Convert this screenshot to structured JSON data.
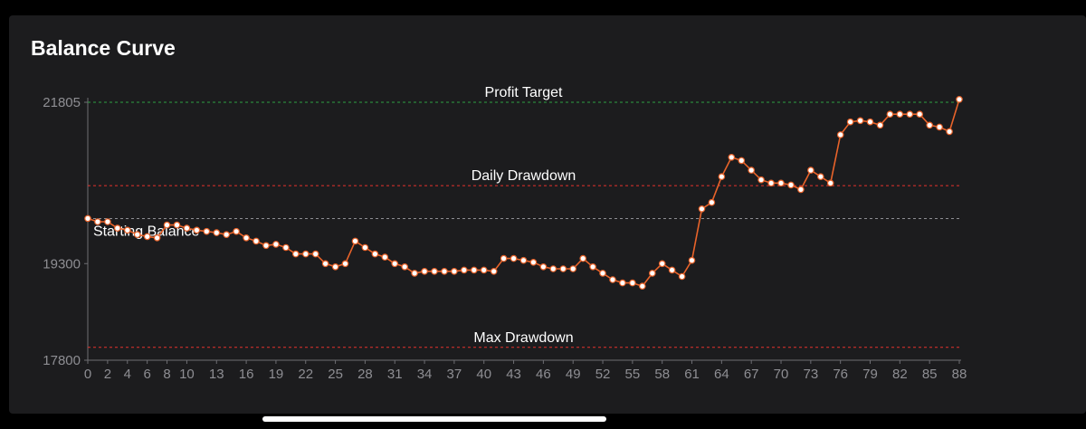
{
  "chart_data": {
    "type": "line",
    "title": "Balance Curve",
    "xlabel": "",
    "ylabel": "",
    "x_ticks": [
      "0",
      "2",
      "4",
      "6",
      "8",
      "10",
      "13",
      "16",
      "19",
      "22",
      "25",
      "28",
      "31",
      "34",
      "37",
      "40",
      "43",
      "46",
      "49",
      "52",
      "55",
      "58",
      "61",
      "64",
      "67",
      "70",
      "73",
      "76",
      "79",
      "82",
      "85",
      "88"
    ],
    "y_ticks": [
      "21805",
      "19300",
      "17800"
    ],
    "xlim": [
      0,
      88
    ],
    "ylim": [
      17800,
      21805
    ],
    "grid": false,
    "colors": {
      "line": "#e8632a",
      "marker_fill": "#ffffff",
      "target": "#2ea043",
      "drawdown": "#e5322d",
      "start": "#8e8e93"
    },
    "reference_lines": [
      {
        "label": "Profit Target",
        "value": 21805,
        "color": "#2ea043"
      },
      {
        "label": "Daily Drawdown",
        "value": 20510,
        "color": "#e5322d"
      },
      {
        "label": "Starting Balance",
        "value": 20000,
        "color": "#8e8e93"
      },
      {
        "label": "Max Drawdown",
        "value": 18000,
        "color": "#e5322d"
      }
    ],
    "series": [
      {
        "values": [
          20000,
          19950,
          19950,
          19850,
          19820,
          19750,
          19720,
          19700,
          19900,
          19900,
          19850,
          19820,
          19800,
          19780,
          19750,
          19800,
          19700,
          19650,
          19580,
          19600,
          19550,
          19450,
          19450,
          19450,
          19300,
          19250,
          19300,
          19650,
          19550,
          19450,
          19400,
          19300,
          19250,
          19150,
          19180,
          19180,
          19180,
          19180,
          19200,
          19200,
          19200,
          19180,
          19380,
          19380,
          19350,
          19320,
          19250,
          19220,
          19220,
          19220,
          19380,
          19250,
          19150,
          19050,
          19000,
          19000,
          18950,
          19150,
          19300,
          19200,
          19100,
          19350,
          20150,
          20250,
          20650,
          20950,
          20900,
          20750,
          20600,
          20550,
          20550,
          20520,
          20450,
          20750,
          20650,
          20550,
          21300,
          21500,
          21520,
          21500,
          21450,
          21620,
          21620,
          21620,
          21620,
          21450,
          21420,
          21350,
          21850
        ]
      }
    ]
  }
}
